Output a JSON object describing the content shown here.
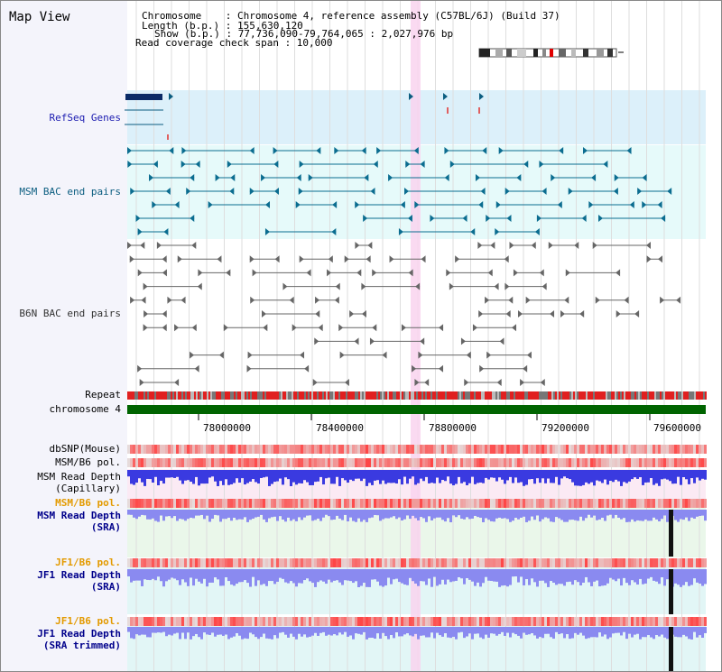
{
  "view_title": "Map View",
  "info": {
    "lines": [
      "Chromosome    : Chromosome 4, reference assembly (C57BL/6J) (Build 37)",
      "Length (b.p.) : 155,630,120",
      "Show (b.p.) : 77,736,090-79,764,065 : 2,027,976 bp",
      "Read coverage check span : 10,000"
    ]
  },
  "tracks": {
    "refseq": "RefSeq Genes",
    "msm_bac": "MSM BAC end pairs",
    "b6n_bac": "B6N BAC end pairs",
    "repeat": "Repeat",
    "chromosome": "chromosome 4",
    "dbsnp": "dbSNP(Mouse)",
    "msm_b6_pol_1": "MSM/B6 pol.",
    "msm_read_depth_cap_1": "MSM Read Depth",
    "msm_read_depth_cap_2": "(Capillary)",
    "msm_b6_pol_2": "MSM/B6 pol.",
    "msm_read_depth_sra_1": "MSM Read Depth",
    "msm_read_depth_sra_2": "(SRA)",
    "jf1_b6_pol_1": "JF1/B6 pol.",
    "jf1_read_depth_sra_1": "JF1 Read Depth",
    "jf1_read_depth_sra_2": "(SRA)",
    "jf1_b6_pol_2": "JF1/B6 pol.",
    "jf1_read_depth_trim_1": "JF1 Read Depth",
    "jf1_read_depth_trim_2": "(SRA trimmed)"
  },
  "axis": {
    "ticks": [
      "78000000",
      "78400000",
      "78800000",
      "79200000",
      "79600000"
    ]
  },
  "colors": {
    "refseq_bg": "#dcf0fa",
    "msm_bac_bg": "#e6fafa",
    "highlight": "#f9d3ee",
    "chromosome_bar": "#006400",
    "repeat_red": "#e02020",
    "read_depth_blue": "#3a3ae0",
    "sra_blue": "#8a8af0"
  }
}
